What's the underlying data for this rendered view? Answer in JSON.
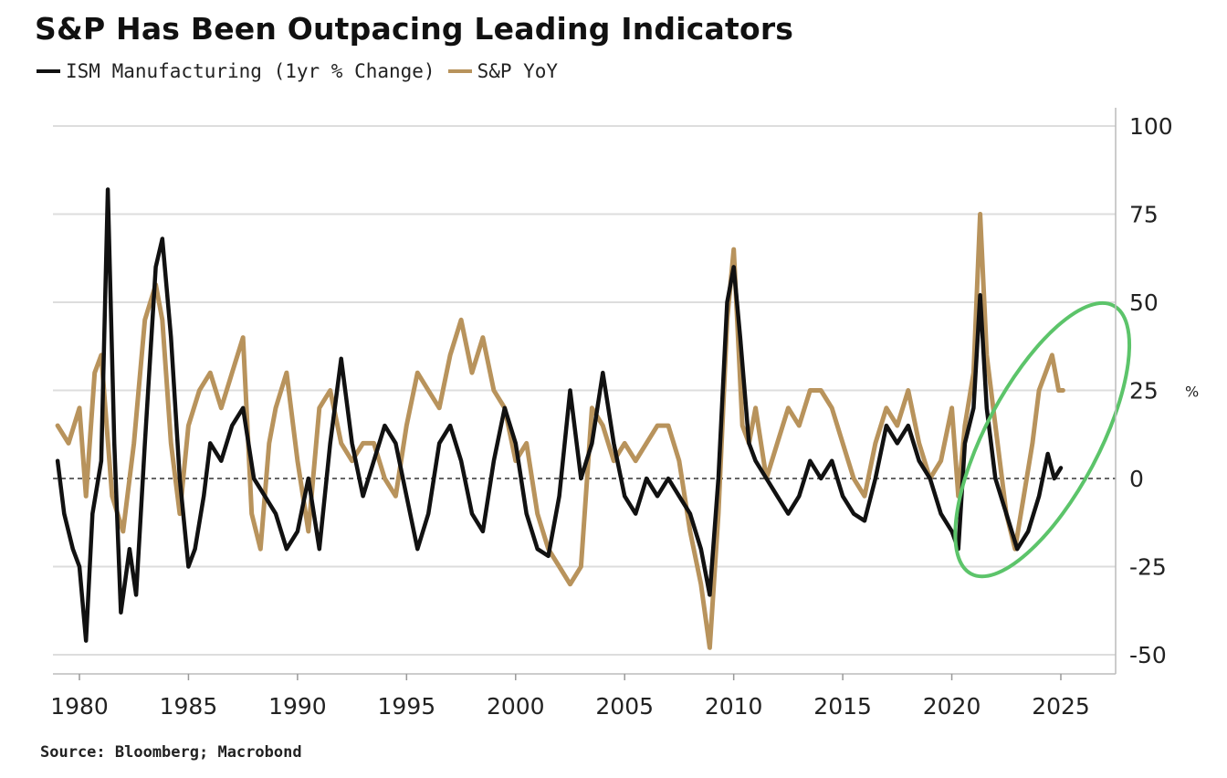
{
  "title": "S&P Has Been Outpacing Leading Indicators",
  "source": "Source: Bloomberg; Macrobond",
  "colors": {
    "ism": "#111111",
    "sp": "#b8935c",
    "highlight": "#5cc46a",
    "grid": "#dddddd"
  },
  "chart_data": {
    "type": "line",
    "title": "S&P Has Been Outpacing Leading Indicators",
    "xlabel": "",
    "ylabel": "",
    "y_unit": "%",
    "xlim": [
      1979,
      2027
    ],
    "ylim": [
      -55,
      100
    ],
    "x_ticks": [
      1980,
      1985,
      1990,
      1995,
      2000,
      2005,
      2010,
      2015,
      2020,
      2025
    ],
    "y_ticks": [
      100,
      75,
      50,
      25,
      0,
      -25,
      -50
    ],
    "grid": true,
    "zero_line": "dashed",
    "legend_position": "top-left",
    "highlight": {
      "shape": "ellipse",
      "x_range": [
        2021.3,
        2027.0
      ],
      "y_range": [
        -30,
        52
      ],
      "color": "green"
    },
    "series": [
      {
        "name": "ISM Manufacturing (1yr % Change)",
        "color": "#111111",
        "points": [
          [
            1979.0,
            5
          ],
          [
            1979.3,
            -10
          ],
          [
            1979.7,
            -20
          ],
          [
            1980.0,
            -25
          ],
          [
            1980.3,
            -46
          ],
          [
            1980.6,
            -10
          ],
          [
            1981.0,
            5
          ],
          [
            1981.3,
            82
          ],
          [
            1981.6,
            10
          ],
          [
            1981.9,
            -38
          ],
          [
            1982.3,
            -20
          ],
          [
            1982.6,
            -33
          ],
          [
            1983.0,
            10
          ],
          [
            1983.5,
            60
          ],
          [
            1983.8,
            68
          ],
          [
            1984.2,
            40
          ],
          [
            1984.6,
            0
          ],
          [
            1985.0,
            -25
          ],
          [
            1985.3,
            -20
          ],
          [
            1985.7,
            -5
          ],
          [
            1986.0,
            10
          ],
          [
            1986.5,
            5
          ],
          [
            1987.0,
            15
          ],
          [
            1987.5,
            20
          ],
          [
            1988.0,
            0
          ],
          [
            1988.5,
            -5
          ],
          [
            1989.0,
            -10
          ],
          [
            1989.5,
            -20
          ],
          [
            1990.0,
            -15
          ],
          [
            1990.5,
            0
          ],
          [
            1991.0,
            -20
          ],
          [
            1991.5,
            10
          ],
          [
            1992.0,
            34
          ],
          [
            1992.5,
            10
          ],
          [
            1993.0,
            -5
          ],
          [
            1993.5,
            5
          ],
          [
            1994.0,
            15
          ],
          [
            1994.5,
            10
          ],
          [
            1995.0,
            -5
          ],
          [
            1995.5,
            -20
          ],
          [
            1996.0,
            -10
          ],
          [
            1996.5,
            10
          ],
          [
            1997.0,
            15
          ],
          [
            1997.5,
            5
          ],
          [
            1998.0,
            -10
          ],
          [
            1998.5,
            -15
          ],
          [
            1999.0,
            5
          ],
          [
            1999.5,
            20
          ],
          [
            2000.0,
            10
          ],
          [
            2000.5,
            -10
          ],
          [
            2001.0,
            -20
          ],
          [
            2001.5,
            -22
          ],
          [
            2002.0,
            -5
          ],
          [
            2002.5,
            25
          ],
          [
            2003.0,
            0
          ],
          [
            2003.5,
            10
          ],
          [
            2004.0,
            30
          ],
          [
            2004.5,
            10
          ],
          [
            2005.0,
            -5
          ],
          [
            2005.5,
            -10
          ],
          [
            2006.0,
            0
          ],
          [
            2006.5,
            -5
          ],
          [
            2007.0,
            0
          ],
          [
            2007.5,
            -5
          ],
          [
            2008.0,
            -10
          ],
          [
            2008.5,
            -20
          ],
          [
            2008.9,
            -33
          ],
          [
            2009.3,
            0
          ],
          [
            2009.7,
            50
          ],
          [
            2010.0,
            60
          ],
          [
            2010.3,
            40
          ],
          [
            2010.7,
            10
          ],
          [
            2011.0,
            5
          ],
          [
            2011.5,
            0
          ],
          [
            2012.0,
            -5
          ],
          [
            2012.5,
            -10
          ],
          [
            2013.0,
            -5
          ],
          [
            2013.5,
            5
          ],
          [
            2014.0,
            0
          ],
          [
            2014.5,
            5
          ],
          [
            2015.0,
            -5
          ],
          [
            2015.5,
            -10
          ],
          [
            2016.0,
            -12
          ],
          [
            2016.5,
            0
          ],
          [
            2017.0,
            15
          ],
          [
            2017.5,
            10
          ],
          [
            2018.0,
            15
          ],
          [
            2018.5,
            5
          ],
          [
            2019.0,
            0
          ],
          [
            2019.5,
            -10
          ],
          [
            2020.0,
            -15
          ],
          [
            2020.3,
            -20
          ],
          [
            2020.6,
            10
          ],
          [
            2021.0,
            20
          ],
          [
            2021.3,
            52
          ],
          [
            2021.6,
            20
          ],
          [
            2022.0,
            0
          ],
          [
            2022.5,
            -10
          ],
          [
            2023.0,
            -20
          ],
          [
            2023.5,
            -15
          ],
          [
            2024.0,
            -5
          ],
          [
            2024.4,
            7
          ],
          [
            2024.7,
            0
          ],
          [
            2025.0,
            3
          ]
        ]
      },
      {
        "name": "S&P YoY",
        "color": "#b8935c",
        "points": [
          [
            1979.0,
            15
          ],
          [
            1979.5,
            10
          ],
          [
            1980.0,
            20
          ],
          [
            1980.3,
            -5
          ],
          [
            1980.7,
            30
          ],
          [
            1981.0,
            35
          ],
          [
            1981.5,
            -5
          ],
          [
            1982.0,
            -15
          ],
          [
            1982.5,
            10
          ],
          [
            1983.0,
            45
          ],
          [
            1983.5,
            55
          ],
          [
            1983.8,
            45
          ],
          [
            1984.2,
            10
          ],
          [
            1984.6,
            -10
          ],
          [
            1985.0,
            15
          ],
          [
            1985.5,
            25
          ],
          [
            1986.0,
            30
          ],
          [
            1986.5,
            20
          ],
          [
            1987.0,
            30
          ],
          [
            1987.5,
            40
          ],
          [
            1987.9,
            -10
          ],
          [
            1988.3,
            -20
          ],
          [
            1988.7,
            10
          ],
          [
            1989.0,
            20
          ],
          [
            1989.5,
            30
          ],
          [
            1990.0,
            5
          ],
          [
            1990.5,
            -15
          ],
          [
            1991.0,
            20
          ],
          [
            1991.5,
            25
          ],
          [
            1992.0,
            10
          ],
          [
            1992.5,
            5
          ],
          [
            1993.0,
            10
          ],
          [
            1993.5,
            10
          ],
          [
            1994.0,
            0
          ],
          [
            1994.5,
            -5
          ],
          [
            1995.0,
            15
          ],
          [
            1995.5,
            30
          ],
          [
            1996.0,
            25
          ],
          [
            1996.5,
            20
          ],
          [
            1997.0,
            35
          ],
          [
            1997.5,
            45
          ],
          [
            1998.0,
            30
          ],
          [
            1998.5,
            40
          ],
          [
            1999.0,
            25
          ],
          [
            1999.5,
            20
          ],
          [
            2000.0,
            5
          ],
          [
            2000.5,
            10
          ],
          [
            2001.0,
            -10
          ],
          [
            2001.5,
            -20
          ],
          [
            2002.0,
            -25
          ],
          [
            2002.5,
            -30
          ],
          [
            2003.0,
            -25
          ],
          [
            2003.5,
            20
          ],
          [
            2004.0,
            15
          ],
          [
            2004.5,
            5
          ],
          [
            2005.0,
            10
          ],
          [
            2005.5,
            5
          ],
          [
            2006.0,
            10
          ],
          [
            2006.5,
            15
          ],
          [
            2007.0,
            15
          ],
          [
            2007.5,
            5
          ],
          [
            2008.0,
            -15
          ],
          [
            2008.5,
            -30
          ],
          [
            2008.9,
            -48
          ],
          [
            2009.3,
            -10
          ],
          [
            2009.7,
            45
          ],
          [
            2010.0,
            65
          ],
          [
            2010.4,
            15
          ],
          [
            2010.7,
            10
          ],
          [
            2011.0,
            20
          ],
          [
            2011.5,
            0
          ],
          [
            2012.0,
            10
          ],
          [
            2012.5,
            20
          ],
          [
            2013.0,
            15
          ],
          [
            2013.5,
            25
          ],
          [
            2014.0,
            25
          ],
          [
            2014.5,
            20
          ],
          [
            2015.0,
            10
          ],
          [
            2015.5,
            0
          ],
          [
            2016.0,
            -5
          ],
          [
            2016.5,
            10
          ],
          [
            2017.0,
            20
          ],
          [
            2017.5,
            15
          ],
          [
            2018.0,
            25
          ],
          [
            2018.5,
            10
          ],
          [
            2019.0,
            0
          ],
          [
            2019.5,
            5
          ],
          [
            2020.0,
            20
          ],
          [
            2020.3,
            -5
          ],
          [
            2020.6,
            15
          ],
          [
            2021.0,
            30
          ],
          [
            2021.3,
            75
          ],
          [
            2021.6,
            35
          ],
          [
            2022.0,
            15
          ],
          [
            2022.5,
            -10
          ],
          [
            2022.9,
            -20
          ],
          [
            2023.3,
            -5
          ],
          [
            2023.7,
            10
          ],
          [
            2024.0,
            25
          ],
          [
            2024.3,
            30
          ],
          [
            2024.6,
            35
          ],
          [
            2024.9,
            25
          ],
          [
            2025.1,
            25
          ]
        ]
      }
    ]
  }
}
